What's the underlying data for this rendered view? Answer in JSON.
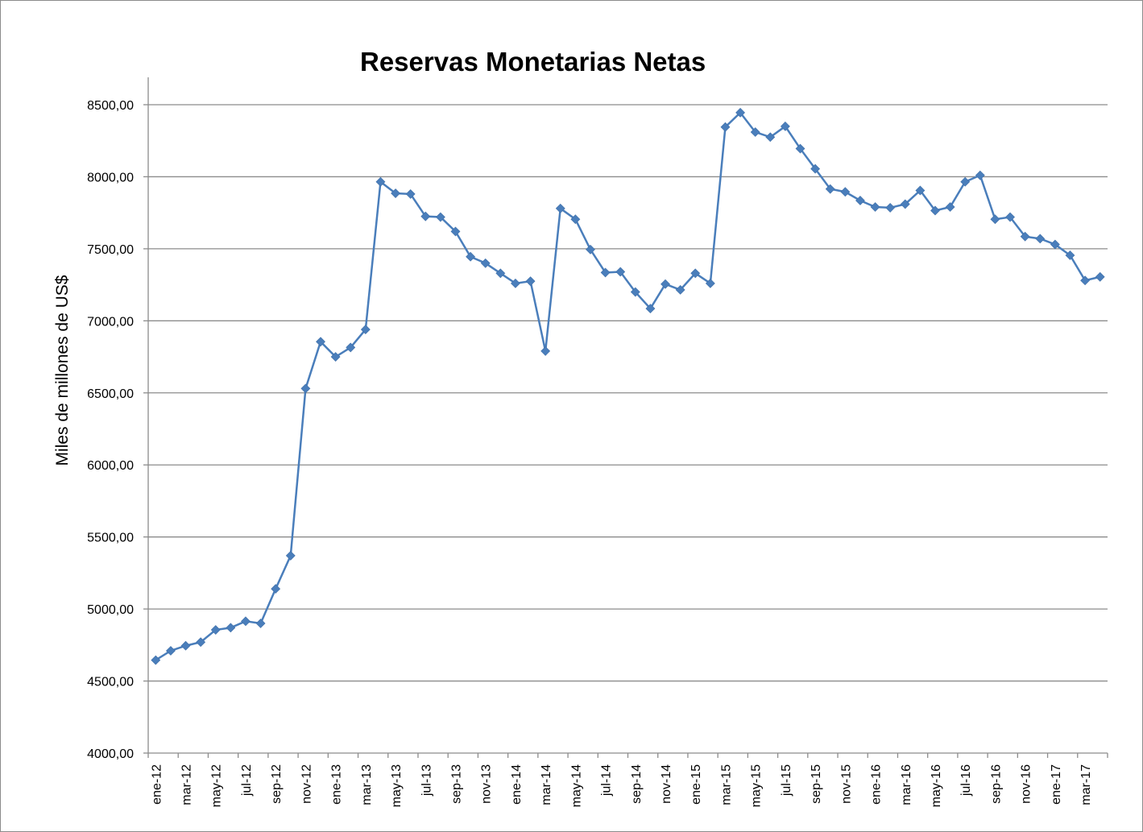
{
  "chart_data": {
    "type": "line",
    "title": "Reservas Monetarias Netas",
    "ylabel": "Miles de millones de US$",
    "xlabel": "",
    "ylim": [
      4000,
      8500
    ],
    "ytick_values": [
      4000,
      4500,
      5000,
      5500,
      6000,
      6500,
      7000,
      7500,
      8000,
      8500
    ],
    "ytick_labels": [
      "4000,00",
      "4500,00",
      "5000,00",
      "5500,00",
      "6000,00",
      "6500,00",
      "7000,00",
      "7500,00",
      "8000,00",
      "8500,00"
    ],
    "grid": true,
    "legend": "none",
    "line_color": "#4a7ebb",
    "x_tick_labels": [
      "ene-12",
      "mar-12",
      "may-12",
      "jul-12",
      "sep-12",
      "nov-12",
      "ene-13",
      "mar-13",
      "may-13",
      "jul-13",
      "sep-13",
      "nov-13",
      "ene-14",
      "mar-14",
      "may-14",
      "jul-14",
      "sep-14",
      "nov-14",
      "ene-15",
      "mar-15",
      "may-15",
      "jul-15",
      "sep-15",
      "nov-15",
      "ene-16",
      "mar-16",
      "may-16",
      "jul-16",
      "sep-16",
      "nov-16",
      "ene-17",
      "mar-17"
    ],
    "values": [
      4645,
      4710,
      4745,
      4770,
      4855,
      4870,
      4915,
      4900,
      5140,
      5370,
      6530,
      6855,
      6750,
      6815,
      6940,
      7965,
      7885,
      7880,
      7725,
      7720,
      7620,
      7445,
      7400,
      7330,
      7260,
      7275,
      6790,
      7780,
      7705,
      7495,
      7335,
      7340,
      7200,
      7085,
      7255,
      7215,
      7330,
      7260,
      8345,
      8445,
      8310,
      8275,
      8350,
      8195,
      8055,
      7915,
      7895,
      7835,
      7790,
      7785,
      7810,
      7905,
      7765,
      7790,
      7965,
      8010,
      7705,
      7720,
      7585,
      7570,
      7530,
      7455,
      7280,
      7305
    ]
  }
}
